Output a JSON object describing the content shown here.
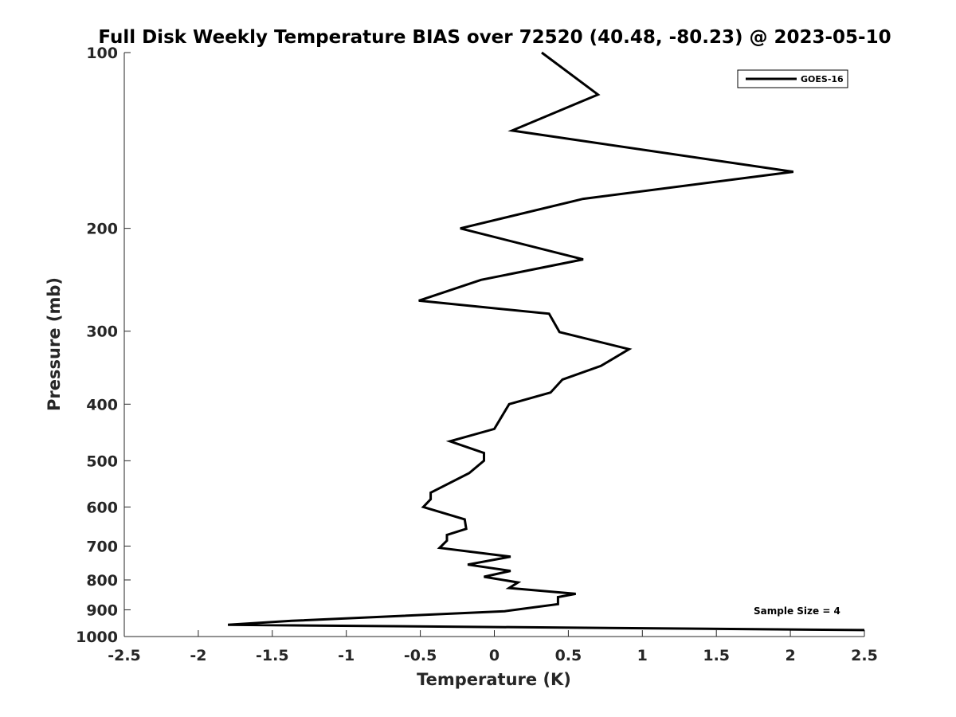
{
  "chart_data": {
    "type": "line",
    "title": "Full Disk Weekly Temperature BIAS over 72520 (40.48, -80.23) @ 2023-05-10",
    "xlabel": "Temperature (K)",
    "ylabel": "Pressure (mb)",
    "xlim": [
      -2.5,
      2.5
    ],
    "ylim": [
      100,
      1000
    ],
    "y_scale": "log",
    "y_reversed": true,
    "x_ticks": [
      "-2.5",
      "-2",
      "-1.5",
      "-1",
      "-0.5",
      "0",
      "0.5",
      "1",
      "1.5",
      "2",
      "2.5"
    ],
    "y_ticks": [
      "100",
      "200",
      "300",
      "400",
      "500",
      "600",
      "700",
      "800",
      "900",
      "1000"
    ],
    "grid": false,
    "legend_position": "top-right",
    "annotation": "Sample Size = 4",
    "series": [
      {
        "name": "GOES-16",
        "color": "#000000",
        "points": [
          {
            "x": 0.32,
            "y": 100
          },
          {
            "x": 0.7,
            "y": 118
          },
          {
            "x": 0.12,
            "y": 136
          },
          {
            "x": 2.02,
            "y": 160
          },
          {
            "x": 0.6,
            "y": 178
          },
          {
            "x": -0.23,
            "y": 200
          },
          {
            "x": 0.6,
            "y": 226
          },
          {
            "x": -0.09,
            "y": 245
          },
          {
            "x": -0.51,
            "y": 266
          },
          {
            "x": 0.37,
            "y": 280
          },
          {
            "x": 0.44,
            "y": 301
          },
          {
            "x": 0.91,
            "y": 322
          },
          {
            "x": 0.72,
            "y": 344
          },
          {
            "x": 0.46,
            "y": 363
          },
          {
            "x": 0.38,
            "y": 382
          },
          {
            "x": 0.1,
            "y": 400
          },
          {
            "x": 0.05,
            "y": 420
          },
          {
            "x": 0.0,
            "y": 441
          },
          {
            "x": -0.3,
            "y": 463
          },
          {
            "x": -0.07,
            "y": 485
          },
          {
            "x": -0.07,
            "y": 500
          },
          {
            "x": -0.17,
            "y": 525
          },
          {
            "x": -0.43,
            "y": 567
          },
          {
            "x": -0.43,
            "y": 582
          },
          {
            "x": -0.48,
            "y": 600
          },
          {
            "x": -0.2,
            "y": 630
          },
          {
            "x": -0.19,
            "y": 654
          },
          {
            "x": -0.32,
            "y": 670
          },
          {
            "x": -0.32,
            "y": 685
          },
          {
            "x": -0.37,
            "y": 705
          },
          {
            "x": 0.11,
            "y": 730
          },
          {
            "x": -0.18,
            "y": 753
          },
          {
            "x": 0.11,
            "y": 772
          },
          {
            "x": -0.07,
            "y": 790
          },
          {
            "x": 0.16,
            "y": 808
          },
          {
            "x": 0.1,
            "y": 826
          },
          {
            "x": 0.55,
            "y": 845
          },
          {
            "x": 0.43,
            "y": 856
          },
          {
            "x": 0.43,
            "y": 880
          },
          {
            "x": 0.07,
            "y": 905
          },
          {
            "x": -1.37,
            "y": 940
          },
          {
            "x": -1.8,
            "y": 955
          },
          {
            "x": 2.5,
            "y": 975
          }
        ]
      }
    ]
  }
}
